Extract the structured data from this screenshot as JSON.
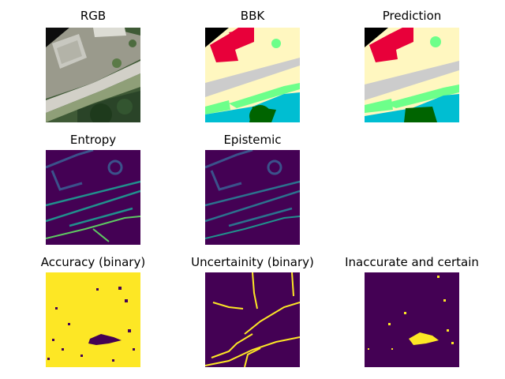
{
  "figure": {
    "panels": [
      {
        "id": "rgb",
        "title": "RGB",
        "kind": "aerial-photo"
      },
      {
        "id": "bbk",
        "title": "BBK",
        "kind": "label-map"
      },
      {
        "id": "prediction",
        "title": "Prediction",
        "kind": "label-map"
      },
      {
        "id": "entropy",
        "title": "Entropy",
        "kind": "heatmap"
      },
      {
        "id": "epistemic",
        "title": "Epistemic",
        "kind": "heatmap"
      },
      {
        "id": "accuracy",
        "title": "Accuracy (binary)",
        "kind": "binary-map"
      },
      {
        "id": "uncertainty",
        "title": "Uncertainity (binary)",
        "kind": "binary-map"
      },
      {
        "id": "inaccurate",
        "title": "Inaccurate and certain",
        "kind": "binary-map"
      }
    ]
  },
  "colors": {
    "label_black": "#000000",
    "label_red": "#e8003a",
    "label_cream": "#fff7c0",
    "label_grey": "#cccccc",
    "label_light_green": "#6dff8a",
    "label_cyan": "#00bed2",
    "label_dark_green": "#006400",
    "viridis_dark": "#440154",
    "viridis_mid": "#3b528b",
    "viridis_teal": "#21908d",
    "viridis_green": "#5ec962",
    "viridis_yellow": "#fde725"
  }
}
